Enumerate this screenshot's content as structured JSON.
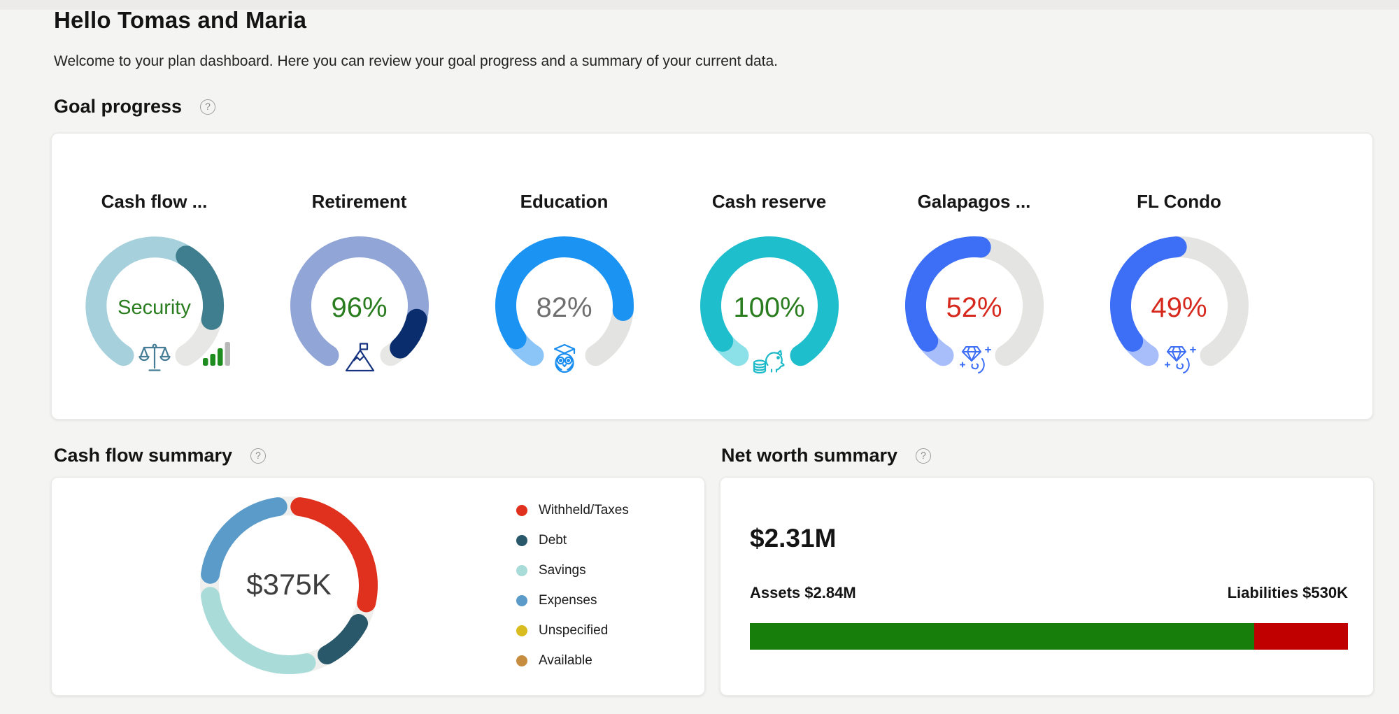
{
  "page": {
    "title": "Hello Tomas and Maria",
    "subtitle": "Welcome to your plan dashboard. Here you can review your goal progress and a summary of your current data."
  },
  "goal_progress": {
    "heading": "Goal progress",
    "help_icon": "question-mark",
    "gauges": [
      {
        "title": "Cash flow ...",
        "center_label": "Security",
        "center_color": "#2a7d1f",
        "icons": [
          "balance-scales-icon",
          "signal-bars-icon"
        ],
        "segments": [
          {
            "color": "#a6d0db",
            "pct": 61
          },
          {
            "color": "#3f7e8e",
            "pct": 24
          },
          {
            "color": "#e7e7e5",
            "pct": 15,
            "under": true
          }
        ]
      },
      {
        "title": "Retirement",
        "center_label": "96%",
        "center_color": "#2a7d1f",
        "icons": [
          "mountain-flag-icon"
        ],
        "segments": [
          {
            "color": "#91a6d7",
            "pct": 85
          },
          {
            "color": "#0a2d6d",
            "pct": 11
          },
          {
            "color": "#e7e7e5",
            "pct": 4,
            "under": true
          }
        ]
      },
      {
        "title": "Education",
        "center_label": "82%",
        "center_color": "#6f6f6f",
        "icons": [
          "owl-graduate-icon"
        ],
        "segments": [
          {
            "color": "#8bc5f7",
            "pct": 8
          },
          {
            "color": "#1b93f2",
            "pct": 74
          },
          {
            "color": "#e3e3e1",
            "pct": 18,
            "under": true
          }
        ]
      },
      {
        "title": "Cash reserve",
        "center_label": "100%",
        "center_color": "#2a7d1f",
        "icons": [
          "piggy-bank-coins-icon"
        ],
        "segments": [
          {
            "color": "#8ce0e8",
            "pct": 7
          },
          {
            "color": "#1fbecd",
            "pct": 93
          }
        ]
      },
      {
        "title": "Galapagos ...",
        "center_label": "52%",
        "center_color": "#d6281c",
        "icons": [
          "diamond-hand-icon"
        ],
        "segments": [
          {
            "color": "#a8befb",
            "pct": 7
          },
          {
            "color": "#3c6ef6",
            "pct": 45
          },
          {
            "color": "#e4e4e2",
            "pct": 48,
            "under": true
          }
        ]
      },
      {
        "title": "FL Condo",
        "center_label": "49%",
        "center_color": "#d6281c",
        "icons": [
          "diamond-hand-icon"
        ],
        "segments": [
          {
            "color": "#a8befb",
            "pct": 7
          },
          {
            "color": "#3c6ef6",
            "pct": 42
          },
          {
            "color": "#e4e4e2",
            "pct": 51,
            "under": true
          }
        ]
      }
    ]
  },
  "cash_flow": {
    "heading": "Cash flow summary",
    "help_icon": "question-mark",
    "center_label": "$375K",
    "legend": [
      {
        "label": "Withheld/Taxes",
        "color": "#e0301e"
      },
      {
        "label": "Debt",
        "color": "#29586a"
      },
      {
        "label": "Savings",
        "color": "#a9dcd9"
      },
      {
        "label": "Expenses",
        "color": "#5b9bc9"
      },
      {
        "label": "Unspecified",
        "color": "#d9bd20"
      },
      {
        "label": "Available",
        "color": "#c68c3f"
      }
    ],
    "donut": {
      "track": "#efefed",
      "segments": [
        {
          "label": "Withheld/Taxes",
          "color": "#e0301e",
          "value": 32
        },
        {
          "label": "Debt",
          "color": "#29586a",
          "value": 11
        },
        {
          "label": "Savings",
          "color": "#a9dcd9",
          "value": 32
        },
        {
          "label": "Expenses",
          "color": "#5b9bc9",
          "value": 25
        }
      ]
    }
  },
  "net_worth": {
    "heading": "Net worth summary",
    "help_icon": "question-mark",
    "total": "$2.31M",
    "assets_label": "Assets $2.84M",
    "liabilities_label": "Liabilities $530K",
    "bar": {
      "assets_color": "#177d0b",
      "liabilities_color": "#c00000",
      "assets_pct": 84.3,
      "liabilities_pct": 15.7
    }
  },
  "chart_data": [
    {
      "type": "pie",
      "title": "Cash flow summary",
      "center_label": "$375K",
      "categories": [
        "Withheld/Taxes",
        "Debt",
        "Savings",
        "Expenses",
        "Unspecified",
        "Available"
      ],
      "values": [
        32,
        11,
        32,
        25,
        0,
        0
      ],
      "legend_position": "right"
    },
    {
      "type": "bar",
      "title": "Net worth summary",
      "categories": [
        "Assets",
        "Liabilities"
      ],
      "values": [
        2840000,
        530000
      ],
      "labels": [
        "$2.84M",
        "$530K"
      ],
      "total": "$2.31M"
    },
    {
      "type": "area",
      "title": "Goal progress gauges",
      "categories": [
        "Cash flow ...",
        "Retirement",
        "Education",
        "Cash reserve",
        "Galapagos ...",
        "FL Condo"
      ],
      "values": [
        "Security",
        96,
        82,
        100,
        52,
        49
      ]
    }
  ]
}
